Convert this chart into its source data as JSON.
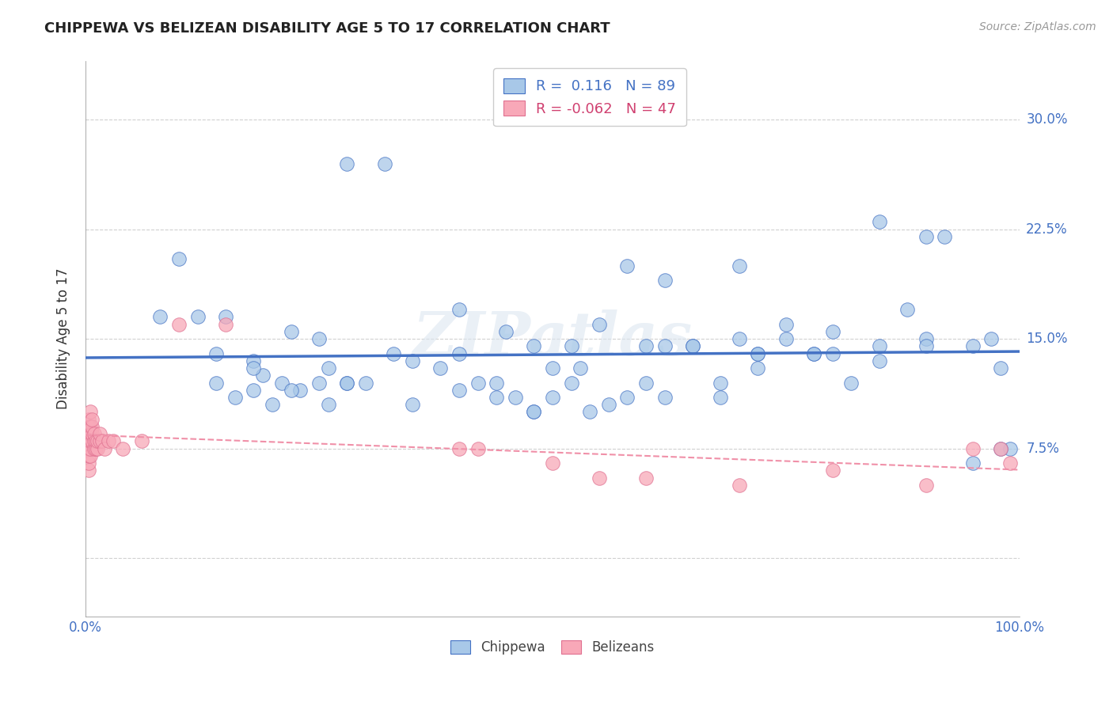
{
  "title": "CHIPPEWA VS BELIZEAN DISABILITY AGE 5 TO 17 CORRELATION CHART",
  "source_text": "Source: ZipAtlas.com",
  "ylabel": "Disability Age 5 to 17",
  "xlim": [
    0.0,
    1.0
  ],
  "ylim": [
    -0.04,
    0.34
  ],
  "ytick_positions": [
    0.0,
    0.075,
    0.15,
    0.225,
    0.3
  ],
  "ytick_labels_right": [
    "",
    "7.5%",
    "15.0%",
    "22.5%",
    "30.0%"
  ],
  "xticks": [
    0.0,
    0.25,
    0.5,
    0.75,
    1.0
  ],
  "xtick_labels": [
    "0.0%",
    "",
    "",
    "",
    "100.0%"
  ],
  "chippewa_R": 0.116,
  "chippewa_N": 89,
  "belizean_R": -0.062,
  "belizean_N": 47,
  "chippewa_color": "#a8c8e8",
  "belizean_color": "#f8a8b8",
  "chippewa_line_color": "#4472c4",
  "belizean_line_color": "#f090a8",
  "background_color": "#ffffff",
  "grid_color": "#d0d0d0",
  "chippewa_x": [
    0.28,
    0.32,
    0.08,
    0.12,
    0.14,
    0.18,
    0.19,
    0.22,
    0.25,
    0.26,
    0.14,
    0.16,
    0.18,
    0.2,
    0.21,
    0.23,
    0.26,
    0.28,
    0.3,
    0.4,
    0.42,
    0.44,
    0.46,
    0.48,
    0.5,
    0.52,
    0.53,
    0.54,
    0.56,
    0.58,
    0.6,
    0.62,
    0.65,
    0.68,
    0.7,
    0.72,
    0.75,
    0.78,
    0.8,
    0.82,
    0.85,
    0.88,
    0.9,
    0.92,
    0.95,
    0.97,
    0.98,
    0.99,
    0.38,
    0.35,
    0.33,
    0.5,
    0.48,
    0.62,
    0.7,
    0.75,
    0.8,
    0.85,
    0.9,
    0.55,
    0.45,
    0.4,
    0.6,
    0.65,
    0.72,
    0.15,
    0.1,
    0.18,
    0.22,
    0.25,
    0.28,
    0.35,
    0.4,
    0.44,
    0.48,
    0.52,
    0.58,
    0.62,
    0.68,
    0.72,
    0.78,
    0.85,
    0.9,
    0.95,
    0.98
  ],
  "chippewa_y": [
    0.27,
    0.27,
    0.165,
    0.165,
    0.14,
    0.135,
    0.125,
    0.155,
    0.15,
    0.13,
    0.12,
    0.11,
    0.115,
    0.105,
    0.12,
    0.115,
    0.105,
    0.12,
    0.12,
    0.14,
    0.12,
    0.12,
    0.11,
    0.1,
    0.13,
    0.12,
    0.13,
    0.1,
    0.105,
    0.11,
    0.12,
    0.145,
    0.145,
    0.11,
    0.15,
    0.14,
    0.15,
    0.14,
    0.14,
    0.12,
    0.145,
    0.17,
    0.22,
    0.22,
    0.145,
    0.15,
    0.13,
    0.075,
    0.13,
    0.135,
    0.14,
    0.11,
    0.1,
    0.19,
    0.2,
    0.16,
    0.155,
    0.23,
    0.15,
    0.16,
    0.155,
    0.17,
    0.145,
    0.145,
    0.14,
    0.165,
    0.205,
    0.13,
    0.115,
    0.12,
    0.12,
    0.105,
    0.115,
    0.11,
    0.145,
    0.145,
    0.2,
    0.11,
    0.12,
    0.13,
    0.14,
    0.135,
    0.145,
    0.065,
    0.075
  ],
  "belizean_x": [
    0.003,
    0.003,
    0.003,
    0.003,
    0.003,
    0.003,
    0.003,
    0.003,
    0.005,
    0.005,
    0.005,
    0.005,
    0.005,
    0.005,
    0.007,
    0.007,
    0.007,
    0.007,
    0.009,
    0.009,
    0.009,
    0.011,
    0.011,
    0.013,
    0.013,
    0.015,
    0.015,
    0.018,
    0.02,
    0.025,
    0.03,
    0.04,
    0.06,
    0.1,
    0.15,
    0.4,
    0.42,
    0.5,
    0.55,
    0.6,
    0.7,
    0.8,
    0.9,
    0.95,
    0.98,
    0.99
  ],
  "belizean_y": [
    0.06,
    0.065,
    0.07,
    0.075,
    0.08,
    0.085,
    0.09,
    0.095,
    0.07,
    0.075,
    0.08,
    0.085,
    0.09,
    0.1,
    0.08,
    0.085,
    0.09,
    0.095,
    0.075,
    0.08,
    0.085,
    0.075,
    0.08,
    0.075,
    0.08,
    0.08,
    0.085,
    0.08,
    0.075,
    0.08,
    0.08,
    0.075,
    0.08,
    0.16,
    0.16,
    0.075,
    0.075,
    0.065,
    0.055,
    0.055,
    0.05,
    0.06,
    0.05,
    0.075,
    0.075,
    0.065
  ],
  "watermark": "ZIPatlas",
  "legend_label_1": "R =  0.116   N = 89",
  "legend_label_2": "R = -0.062   N = 47",
  "bottom_label_1": "Chippewa",
  "bottom_label_2": "Belizeans"
}
